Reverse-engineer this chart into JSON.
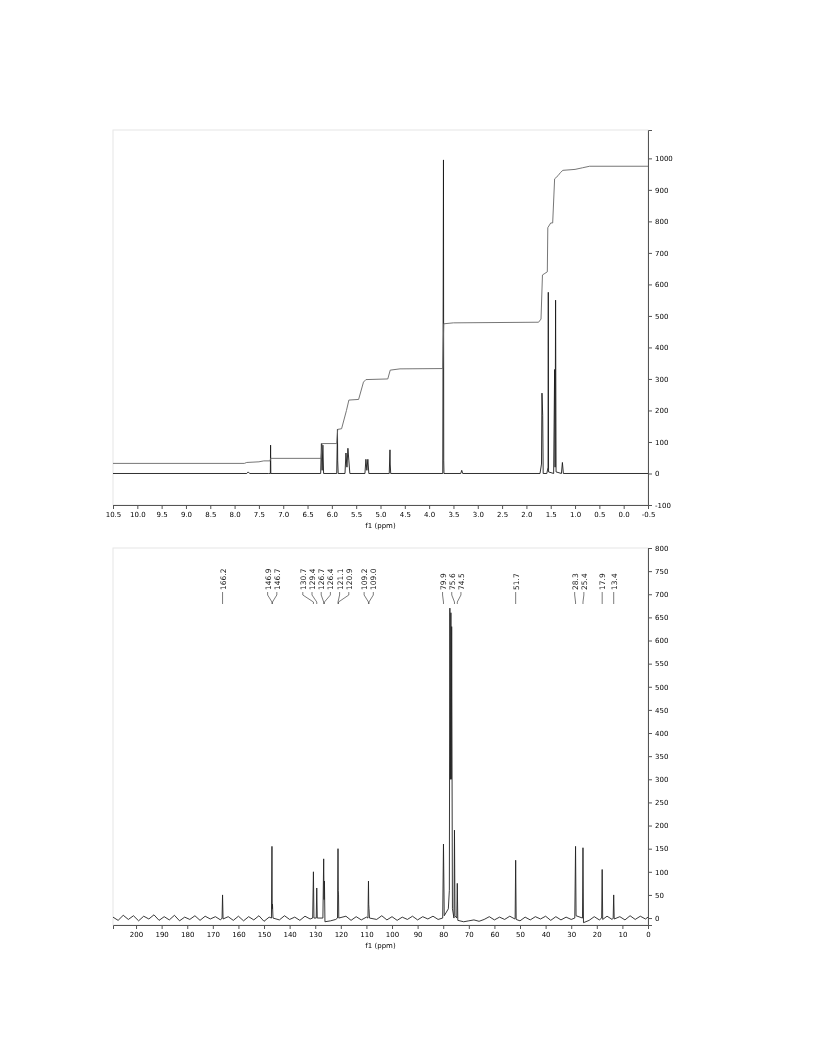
{
  "chart_data": [
    {
      "type": "line",
      "xlabel": "f1 (ppm)",
      "xlim": [
        10.5,
        -0.5
      ],
      "ylim": [
        -100,
        1090
      ],
      "xticks": [
        {
          "value": 10.5,
          "label": "10.5"
        },
        {
          "value": 10,
          "label": "10.0"
        },
        9.5,
        {
          "value": 9,
          "label": "9.0"
        },
        8.5,
        {
          "value": 8,
          "label": "8.0"
        },
        7.5,
        {
          "value": 7,
          "label": "7.0"
        },
        6.5,
        {
          "value": 6,
          "label": "6.0"
        },
        5.5,
        {
          "value": 5,
          "label": "5.0"
        },
        4.5,
        {
          "value": 4,
          "label": "4.0"
        },
        3.5,
        {
          "value": 3,
          "label": "3.0"
        },
        2.5,
        {
          "value": 2,
          "label": "2.0"
        },
        1.5,
        {
          "value": 1,
          "label": "1.0"
        },
        0.5,
        {
          "value": 0,
          "label": "0.0"
        },
        -0.5
      ],
      "yticks": [
        -100,
        0,
        100,
        200,
        300,
        400,
        500,
        600,
        700,
        800,
        900,
        1000
      ],
      "grid": false,
      "marker": "none",
      "line_style": "solid",
      "series": [
        {
          "color": "#1a1a1a",
          "x": [
            10.5,
            7.75,
            7.72,
            7.69,
            7.3,
            7.265,
            7.26,
            7.255,
            6.23,
            6.215,
            6.2,
            6.185,
            6.17,
            5.9,
            5.885,
            5.88,
            5.87,
            5.73,
            5.71,
            5.69,
            5.67,
            5.65,
            5.63,
            5.32,
            5.3,
            5.28,
            5.26,
            5.24,
            4.82,
            4.805,
            4.8,
            4.79,
            3.72,
            3.705,
            3.7,
            3.695,
            3.35,
            3.33,
            3.31,
            1.72,
            1.69,
            1.68,
            1.665,
            1.655,
            1.58,
            1.555,
            1.55,
            1.545,
            1.44,
            1.42,
            1.41,
            1.4,
            1.39,
            1.28,
            1.26,
            1.24,
            -0.5
          ],
          "values": [
            0,
            0,
            5,
            0,
            0,
            0,
            90,
            0,
            0,
            95,
            10,
            90,
            0,
            0,
            140,
            40,
            0,
            0,
            65,
            20,
            80,
            40,
            0,
            0,
            45,
            10,
            45,
            0,
            0,
            75,
            30,
            0,
            0,
            995,
            40,
            0,
            0,
            10,
            0,
            0,
            30,
            255,
            185,
            0,
            0,
            20,
            575,
            5,
            0,
            330,
            20,
            550,
            5,
            0,
            35,
            0,
            0
          ]
        },
        {
          "color": "#666666",
          "x": [
            10.5,
            7.8,
            7.75,
            7.5,
            7.4,
            7.27,
            7.26,
            6.22,
            6.2,
            5.9,
            5.88,
            5.8,
            5.7,
            5.65,
            5.45,
            5.35,
            5.3,
            4.85,
            4.8,
            4.6,
            3.72,
            3.7,
            3.5,
            1.75,
            1.7,
            1.67,
            1.62,
            1.57,
            1.56,
            1.5,
            1.46,
            1.42,
            1.35,
            1.3,
            1.25,
            1.0,
            0.85,
            0.7,
            -0.5
          ],
          "values": [
            32,
            32,
            35,
            37,
            40,
            40,
            48,
            48,
            95,
            95,
            140,
            142,
            200,
            233,
            235,
            290,
            298,
            300,
            328,
            332,
            333,
            475,
            478,
            480,
            490,
            630,
            635,
            640,
            780,
            795,
            795,
            935,
            945,
            955,
            962,
            965,
            970,
            975,
            975
          ]
        }
      ]
    },
    {
      "type": "line",
      "xlabel": "f1 (ppm)",
      "xlim": [
        209,
        0
      ],
      "ylim": [
        -15,
        800
      ],
      "xticks": [
        200,
        190,
        180,
        170,
        160,
        150,
        140,
        130,
        120,
        110,
        100,
        90,
        80,
        70,
        60,
        50,
        40,
        30,
        20,
        10,
        0
      ],
      "yticks": [
        0,
        50,
        100,
        150,
        200,
        250,
        300,
        350,
        400,
        450,
        500,
        550,
        600,
        650,
        700,
        750,
        800
      ],
      "grid": false,
      "marker": "none",
      "line_style": "solid",
      "annotations": [
        {
          "text": "166.2",
          "x": 166.2
        },
        {
          "text": "146.9",
          "x": 146.9
        },
        {
          "text": "146.7",
          "x": 146.7
        },
        {
          "text": "130.7",
          "x": 130.7
        },
        {
          "text": "129.4",
          "x": 129.4
        },
        {
          "text": "126.7",
          "x": 126.7
        },
        {
          "text": "126.4",
          "x": 126.4
        },
        {
          "text": "121.1",
          "x": 121.1
        },
        {
          "text": "120.9",
          "x": 120.9
        },
        {
          "text": "109.2",
          "x": 109.2
        },
        {
          "text": "109.0",
          "x": 109.0
        },
        {
          "text": "79.9",
          "x": 79.9
        },
        {
          "text": "75.6",
          "x": 75.6
        },
        {
          "text": "74.5",
          "x": 74.5
        },
        {
          "text": "51.7",
          "x": 51.7
        },
        {
          "text": "28.3",
          "x": 28.3
        },
        {
          "text": "25.4",
          "x": 25.4
        },
        {
          "text": "17.9",
          "x": 17.9
        },
        {
          "text": "13.4",
          "x": 13.4
        }
      ],
      "series": [
        {
          "color": "#222222",
          "x": [
            209,
            207,
            205,
            203,
            201,
            199,
            197,
            195,
            193,
            191,
            189,
            187,
            185,
            183,
            181,
            179,
            177,
            175,
            173,
            171,
            169,
            167,
            166.4,
            166.2,
            166.0,
            164,
            162,
            160,
            158,
            156,
            154,
            152,
            150,
            148,
            147.1,
            146.9,
            146.8,
            146.7,
            146.5,
            144,
            142,
            140,
            138,
            136,
            134,
            132,
            131,
            130.7,
            130.5,
            129.6,
            129.4,
            129.2,
            127,
            126.7,
            126.55,
            126.4,
            126.2,
            124,
            122,
            121.3,
            121.1,
            121.0,
            120.9,
            120.8,
            118,
            116,
            114,
            112,
            110,
            109.4,
            109.2,
            109.1,
            109.0,
            108.8,
            106,
            104,
            102,
            100,
            98,
            96,
            94,
            92,
            90,
            88,
            86,
            84,
            82,
            80.2,
            79.9,
            79.6,
            78,
            77.6,
            77.4,
            77.2,
            77.0,
            76.85,
            76.7,
            76.4,
            75.8,
            75.6,
            75.4,
            74.7,
            74.5,
            74.3,
            72,
            70,
            68,
            66,
            64,
            62,
            60,
            58,
            56,
            54,
            52,
            51.9,
            51.7,
            51.5,
            50,
            48,
            46,
            44,
            42,
            40,
            38,
            36,
            34,
            32,
            30,
            28.6,
            28.3,
            28.1,
            25.6,
            25.4,
            25.2,
            23,
            21,
            19,
            18.1,
            17.9,
            17.7,
            16,
            14,
            13.6,
            13.4,
            13.2,
            11,
            9,
            7,
            5,
            3,
            1,
            0
          ],
          "values": [
            2,
            -5,
            6,
            -3,
            5,
            -6,
            4,
            -2,
            7,
            -5,
            3,
            -4,
            6,
            -6,
            2,
            -3,
            5,
            -5,
            4,
            -2,
            3,
            -4,
            0,
            50,
            -2,
            3,
            -5,
            4,
            -6,
            3,
            -4,
            5,
            -7,
            2,
            0,
            155,
            20,
            30,
            0,
            -4,
            5,
            -3,
            2,
            -5,
            4,
            -2,
            0,
            100,
            0,
            0,
            65,
            0,
            0,
            128,
            40,
            80,
            -8,
            -6,
            -3,
            0,
            150,
            60,
            50,
            0,
            4,
            -5,
            3,
            -4,
            2,
            0,
            80,
            30,
            20,
            0,
            -3,
            5,
            -4,
            3,
            -5,
            2,
            -3,
            4,
            -4,
            3,
            -2,
            4,
            -3,
            0,
            160,
            5,
            20,
            60,
            670,
            300,
            660,
            300,
            630,
            20,
            0,
            190,
            5,
            0,
            75,
            -5,
            -8,
            -6,
            -4,
            -7,
            -3,
            3,
            -4,
            2,
            -3,
            4,
            -2,
            0,
            125,
            -3,
            -6,
            2,
            -4,
            3,
            -2,
            4,
            -5,
            3,
            -4,
            2,
            -3,
            0,
            155,
            5,
            0,
            152,
            -10,
            -5,
            3,
            -4,
            0,
            105,
            -3,
            4,
            -3,
            0,
            50,
            -2,
            3,
            -4,
            5,
            -3,
            4,
            -2,
            2
          ]
        }
      ]
    }
  ]
}
